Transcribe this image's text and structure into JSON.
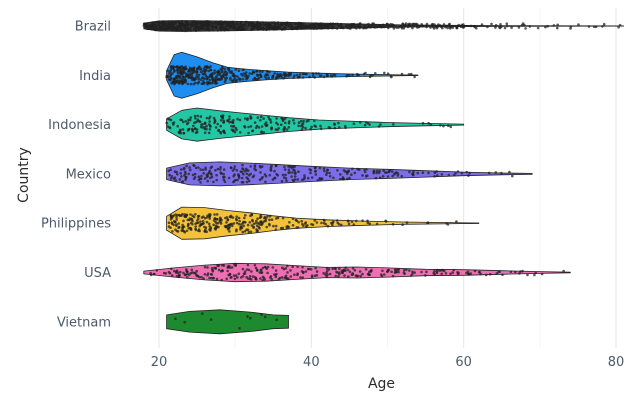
{
  "chart_data": {
    "type": "violin",
    "xlabel": "Age",
    "ylabel": "Country",
    "xlim": [
      17,
      81
    ],
    "x_ticks": [
      20,
      40,
      60,
      80
    ],
    "grid": true,
    "legend": "none",
    "categories": [
      "Brazil",
      "India",
      "Indonesia",
      "Mexico",
      "Philippines",
      "USA",
      "Vietnam"
    ],
    "series": [
      {
        "category": "Brazil",
        "color": "#3c3c3c",
        "min": 18,
        "max": 81,
        "n": 900,
        "density": [
          [
            18,
            0.12
          ],
          [
            20,
            0.22
          ],
          [
            23,
            0.24
          ],
          [
            27,
            0.22
          ],
          [
            31,
            0.2
          ],
          [
            36,
            0.17
          ],
          [
            41,
            0.13
          ],
          [
            46,
            0.09
          ],
          [
            52,
            0.05
          ],
          [
            58,
            0.03
          ],
          [
            65,
            0.015
          ],
          [
            72,
            0.01
          ],
          [
            81,
            0.005
          ]
        ]
      },
      {
        "category": "India",
        "color": "#1f8ef1",
        "min": 21,
        "max": 54,
        "n": 420,
        "density": [
          [
            21,
            0.2
          ],
          [
            22,
            0.9
          ],
          [
            23,
            1.0
          ],
          [
            25,
            0.8
          ],
          [
            27,
            0.55
          ],
          [
            29,
            0.35
          ],
          [
            31,
            0.28
          ],
          [
            34,
            0.2
          ],
          [
            37,
            0.14
          ],
          [
            41,
            0.09
          ],
          [
            46,
            0.05
          ],
          [
            50,
            0.03
          ],
          [
            54,
            0.01
          ]
        ]
      },
      {
        "category": "Indonesia",
        "color": "#22c7a3",
        "min": 21,
        "max": 60,
        "n": 220,
        "density": [
          [
            21,
            0.25
          ],
          [
            23,
            0.62
          ],
          [
            25,
            0.72
          ],
          [
            28,
            0.6
          ],
          [
            31,
            0.5
          ],
          [
            34,
            0.4
          ],
          [
            37,
            0.3
          ],
          [
            41,
            0.2
          ],
          [
            45,
            0.15
          ],
          [
            50,
            0.09
          ],
          [
            55,
            0.05
          ],
          [
            60,
            0.02
          ]
        ]
      },
      {
        "category": "Mexico",
        "color": "#7b6ee8",
        "min": 21,
        "max": 69,
        "n": 280,
        "density": [
          [
            21,
            0.25
          ],
          [
            24,
            0.48
          ],
          [
            28,
            0.52
          ],
          [
            32,
            0.47
          ],
          [
            36,
            0.4
          ],
          [
            40,
            0.33
          ],
          [
            45,
            0.25
          ],
          [
            50,
            0.2
          ],
          [
            55,
            0.14
          ],
          [
            60,
            0.08
          ],
          [
            65,
            0.04
          ],
          [
            69,
            0.02
          ]
        ]
      },
      {
        "category": "Philippines",
        "color": "#f2c23a",
        "min": 21,
        "max": 62,
        "n": 300,
        "density": [
          [
            21,
            0.3
          ],
          [
            23,
            0.7
          ],
          [
            26,
            0.68
          ],
          [
            29,
            0.55
          ],
          [
            32,
            0.45
          ],
          [
            35,
            0.32
          ],
          [
            38,
            0.22
          ],
          [
            42,
            0.15
          ],
          [
            47,
            0.09
          ],
          [
            52,
            0.05
          ],
          [
            57,
            0.03
          ],
          [
            62,
            0.01
          ]
        ]
      },
      {
        "category": "USA",
        "color": "#ef6fb4",
        "min": 18,
        "max": 74,
        "n": 300,
        "density": [
          [
            18,
            0.06
          ],
          [
            22,
            0.2
          ],
          [
            26,
            0.32
          ],
          [
            30,
            0.4
          ],
          [
            34,
            0.38
          ],
          [
            38,
            0.3
          ],
          [
            42,
            0.22
          ],
          [
            46,
            0.24
          ],
          [
            50,
            0.2
          ],
          [
            55,
            0.14
          ],
          [
            60,
            0.12
          ],
          [
            65,
            0.08
          ],
          [
            70,
            0.04
          ],
          [
            74,
            0.015
          ]
        ]
      },
      {
        "category": "Vietnam",
        "color": "#1e8a2f",
        "min": 21,
        "max": 37,
        "n": 10,
        "density": [
          [
            21,
            0.3
          ],
          [
            24,
            0.45
          ],
          [
            28,
            0.52
          ],
          [
            32,
            0.42
          ],
          [
            35,
            0.3
          ],
          [
            37,
            0.28
          ]
        ]
      }
    ]
  }
}
